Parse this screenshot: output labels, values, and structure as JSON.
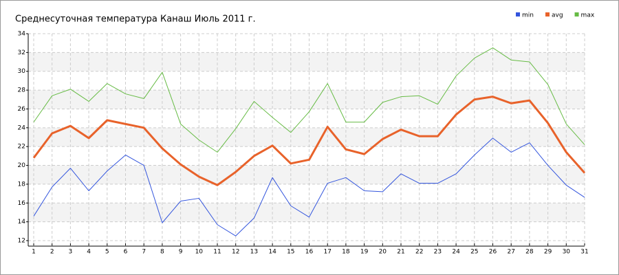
{
  "chart_data": {
    "type": "line",
    "title": "Среднесуточная температура Канаш  Июль 2011 г.",
    "x": [
      1,
      2,
      3,
      4,
      5,
      6,
      7,
      8,
      9,
      10,
      11,
      12,
      13,
      14,
      15,
      16,
      17,
      18,
      19,
      20,
      21,
      22,
      23,
      24,
      25,
      26,
      27,
      28,
      29,
      30,
      31
    ],
    "xlim": [
      1,
      31
    ],
    "xticks": [
      1,
      2,
      3,
      4,
      5,
      6,
      7,
      8,
      9,
      10,
      11,
      12,
      13,
      14,
      15,
      16,
      17,
      18,
      19,
      20,
      21,
      22,
      23,
      24,
      25,
      26,
      27,
      28,
      29,
      30,
      31
    ],
    "ylim": [
      12,
      34
    ],
    "yticks": [
      12,
      14,
      16,
      18,
      20,
      22,
      24,
      26,
      28,
      30,
      32,
      34
    ],
    "grid": true,
    "legend": "top-right",
    "series": [
      {
        "name": "min",
        "color": "#3355dd",
        "width": 1,
        "values": [
          14.6,
          17.7,
          19.7,
          17.3,
          19.4,
          21.1,
          20.0,
          13.9,
          16.2,
          16.5,
          13.7,
          12.5,
          14.4,
          18.7,
          15.7,
          14.5,
          18.1,
          18.7,
          17.3,
          17.2,
          19.1,
          18.1,
          18.1,
          19.1,
          21.1,
          22.9,
          21.4,
          22.4,
          20.0,
          17.9,
          16.6
        ]
      },
      {
        "name": "avg",
        "color": "#e8622a",
        "width": 3,
        "values": [
          20.8,
          23.4,
          24.2,
          22.9,
          24.8,
          24.4,
          24.0,
          21.8,
          20.1,
          18.8,
          17.9,
          19.3,
          21.0,
          22.1,
          20.2,
          20.6,
          24.1,
          21.7,
          21.2,
          22.8,
          23.8,
          23.1,
          23.1,
          25.4,
          27.0,
          27.3,
          26.6,
          26.9,
          24.5,
          21.4,
          19.2
        ]
      },
      {
        "name": "max",
        "color": "#66bb44",
        "width": 1,
        "values": [
          24.6,
          27.4,
          28.1,
          26.8,
          28.7,
          27.6,
          27.1,
          29.9,
          24.4,
          22.7,
          21.4,
          23.9,
          26.8,
          25.1,
          23.5,
          25.7,
          28.7,
          24.6,
          24.6,
          26.7,
          27.3,
          27.4,
          26.5,
          29.5,
          31.4,
          32.5,
          31.2,
          31.0,
          28.6,
          24.4,
          22.2
        ]
      }
    ]
  }
}
